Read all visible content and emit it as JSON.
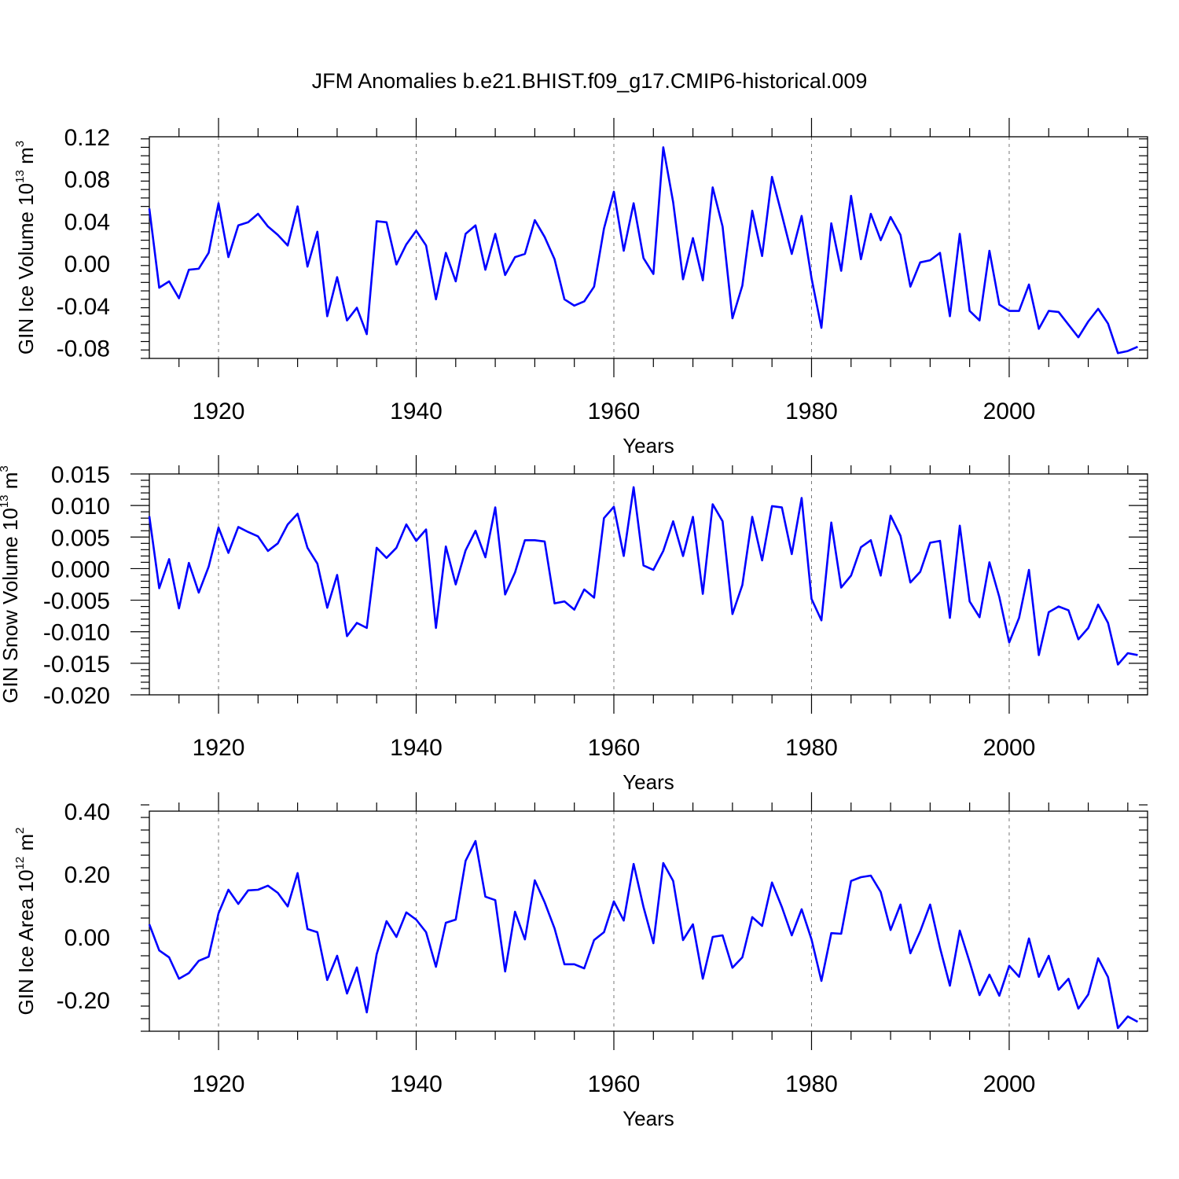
{
  "title": "JFM Anomalies b.e21.BHIST.f09_g17.CMIP6-historical.009",
  "line_color": "#0000ff",
  "chart_data": [
    {
      "type": "line",
      "id": "ice-volume",
      "ylabel": {
        "main": "GIN Ice Volume 10",
        "exp": "13",
        "unit": " m",
        "unit_exp": "3"
      },
      "xlabel": "Years",
      "xlim": [
        1913,
        2014
      ],
      "ylim": [
        -0.09,
        0.12
      ],
      "xticks": [
        1920,
        1940,
        1960,
        1980,
        2000
      ],
      "xtick_labels": [
        "1920",
        "1940",
        "1960",
        "1980",
        "2000"
      ],
      "yticks": [
        -0.08,
        -0.04,
        0.0,
        0.04,
        0.08,
        0.12
      ],
      "ytick_labels": [
        "-0.08",
        "-0.04",
        "0.00",
        "0.04",
        "0.08",
        "0.12"
      ],
      "x_start": 1913,
      "values": [
        0.052,
        -0.023,
        -0.017,
        -0.033,
        -0.006,
        -0.005,
        0.01,
        0.057,
        0.006,
        0.036,
        0.039,
        0.047,
        0.035,
        0.027,
        0.017,
        0.054,
        -0.003,
        0.03,
        -0.05,
        -0.013,
        -0.054,
        -0.042,
        -0.067,
        0.04,
        0.039,
        -0.001,
        0.018,
        0.031,
        0.017,
        -0.034,
        0.01,
        -0.017,
        0.028,
        0.036,
        -0.006,
        0.028,
        -0.011,
        0.006,
        0.009,
        0.041,
        0.025,
        0.004,
        -0.034,
        -0.04,
        -0.036,
        -0.022,
        0.033,
        0.068,
        0.012,
        0.057,
        0.005,
        -0.01,
        0.11,
        0.058,
        -0.015,
        0.024,
        -0.016,
        0.072,
        0.035,
        -0.052,
        -0.021,
        0.05,
        0.007,
        0.082,
        0.046,
        0.009,
        0.045,
        -0.014,
        -0.061,
        0.038,
        -0.007,
        0.064,
        0.004,
        0.047,
        0.022,
        0.044,
        0.027,
        -0.022,
        0.001,
        0.003,
        0.01,
        -0.05,
        0.028,
        -0.045,
        -0.054,
        0.012,
        -0.039,
        -0.045,
        -0.045,
        -0.02,
        -0.062,
        -0.045,
        -0.046,
        -0.058,
        -0.07,
        -0.055,
        -0.043,
        -0.057,
        -0.085,
        -0.083,
        -0.079
      ]
    },
    {
      "type": "line",
      "id": "snow-volume",
      "ylabel": {
        "main": "GIN Snow Volume 10",
        "exp": "13",
        "unit": " m",
        "unit_exp": "3"
      },
      "xlabel": "Years",
      "xlim": [
        1913,
        2014
      ],
      "ylim": [
        -0.02,
        0.015
      ],
      "xticks": [
        1920,
        1940,
        1960,
        1980,
        2000
      ],
      "xtick_labels": [
        "1920",
        "1940",
        "1960",
        "1980",
        "2000"
      ],
      "yticks": [
        -0.02,
        -0.015,
        -0.01,
        -0.005,
        0.0,
        0.005,
        0.01,
        0.015
      ],
      "ytick_labels": [
        "-0.020",
        "-0.015",
        "-0.010",
        "-0.005",
        "0.000",
        "0.005",
        "0.010",
        "0.015"
      ],
      "x_start": 1913,
      "values": [
        0.0083,
        -0.0031,
        0.0015,
        -0.0063,
        0.0009,
        -0.0038,
        0.0003,
        0.0065,
        0.0025,
        0.0066,
        0.0058,
        0.0051,
        0.0028,
        0.004,
        0.007,
        0.0087,
        0.0033,
        0.0008,
        -0.0062,
        -0.001,
        -0.0107,
        -0.0086,
        -0.0094,
        0.0033,
        0.0017,
        0.0033,
        0.007,
        0.0044,
        0.0062,
        -0.0094,
        0.0035,
        -0.0025,
        0.0029,
        0.006,
        0.0018,
        0.0097,
        -0.0041,
        -0.0006,
        0.0045,
        0.0045,
        0.0043,
        -0.0055,
        -0.0052,
        -0.0065,
        -0.0033,
        -0.0046,
        0.008,
        0.0098,
        0.002,
        0.0129,
        0.0005,
        -0.0002,
        0.0028,
        0.0075,
        0.002,
        0.0082,
        -0.004,
        0.0102,
        0.0075,
        -0.0072,
        -0.0026,
        0.0082,
        0.0013,
        0.0099,
        0.0097,
        0.0023,
        0.0112,
        -0.0048,
        -0.0082,
        0.0073,
        -0.003,
        -0.0011,
        0.0034,
        0.0045,
        -0.0011,
        0.0084,
        0.0052,
        -0.0022,
        -0.0005,
        0.0041,
        0.0044,
        -0.0078,
        0.0068,
        -0.0052,
        -0.0077,
        0.001,
        -0.0045,
        -0.0117,
        -0.0078,
        -0.0002,
        -0.0137,
        -0.0069,
        -0.006,
        -0.0066,
        -0.0112,
        -0.0094,
        -0.0057,
        -0.0086,
        -0.0152,
        -0.0134,
        -0.0137
      ]
    },
    {
      "type": "line",
      "id": "ice-area",
      "ylabel": {
        "main": "GIN Ice Area 10",
        "exp": "12",
        "unit": " m",
        "unit_exp": "2"
      },
      "xlabel": "Years",
      "xlim": [
        1913,
        2014
      ],
      "ylim": [
        -0.3,
        0.4
      ],
      "xticks": [
        1920,
        1940,
        1960,
        1980,
        2000
      ],
      "xtick_labels": [
        "1920",
        "1940",
        "1960",
        "1980",
        "2000"
      ],
      "yticks": [
        -0.2,
        0.0,
        0.2,
        0.4
      ],
      "ytick_labels": [
        "-0.20",
        "0.00",
        "0.20",
        "0.40"
      ],
      "x_start": 1913,
      "values": [
        0.04,
        -0.043,
        -0.065,
        -0.133,
        -0.115,
        -0.076,
        -0.063,
        0.075,
        0.15,
        0.105,
        0.148,
        0.15,
        0.163,
        0.14,
        0.097,
        0.203,
        0.025,
        0.015,
        -0.137,
        -0.06,
        -0.18,
        -0.097,
        -0.24,
        -0.055,
        0.05,
        0.0,
        0.078,
        0.055,
        0.015,
        -0.095,
        0.045,
        0.055,
        0.242,
        0.305,
        0.128,
        0.117,
        -0.11,
        0.08,
        -0.008,
        0.18,
        0.11,
        0.027,
        -0.087,
        -0.087,
        -0.1,
        -0.01,
        0.015,
        0.113,
        0.052,
        0.232,
        0.095,
        -0.02,
        0.235,
        0.178,
        -0.01,
        0.04,
        -0.133,
        0.0,
        0.005,
        -0.098,
        -0.065,
        0.063,
        0.035,
        0.173,
        0.095,
        0.005,
        0.088,
        -0.008,
        -0.14,
        0.012,
        0.01,
        0.178,
        0.19,
        0.195,
        0.143,
        0.022,
        0.103,
        -0.052,
        0.018,
        0.103,
        -0.035,
        -0.155,
        0.02,
        -0.08,
        -0.185,
        -0.12,
        -0.187,
        -0.092,
        -0.127,
        -0.005,
        -0.127,
        -0.06,
        -0.168,
        -0.133,
        -0.228,
        -0.183,
        -0.068,
        -0.128,
        -0.29,
        -0.253,
        -0.27
      ]
    }
  ]
}
